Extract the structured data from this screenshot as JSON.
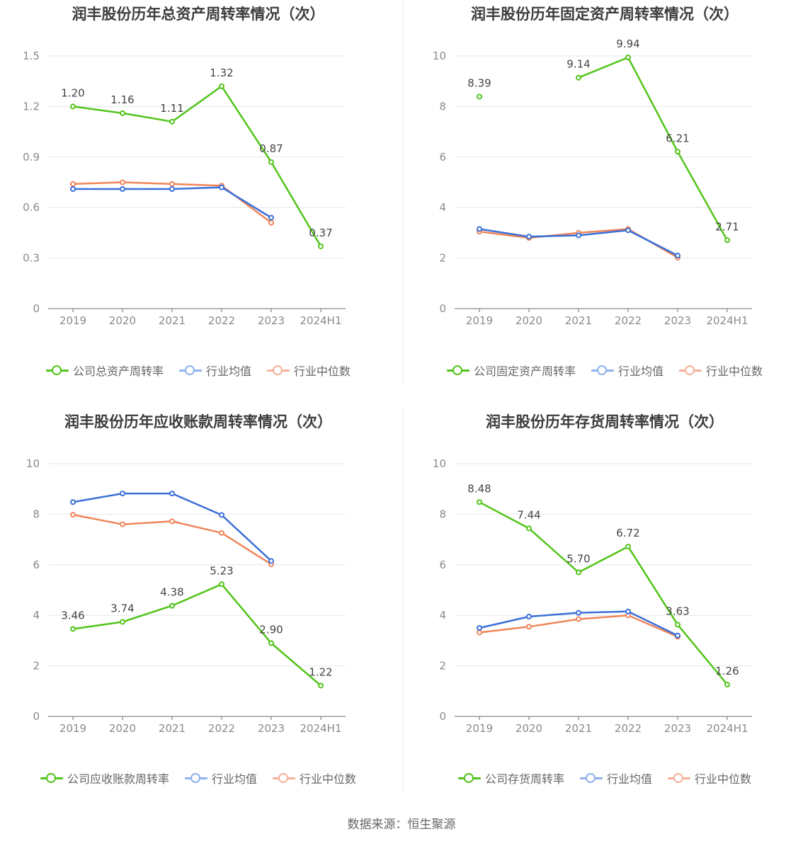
{
  "source": "数据来源：恒生聚源",
  "colors": {
    "company": "#52c41a",
    "avg": "#3a6fd8",
    "median": "#f0855a",
    "legend_avg": "#8fb1ee",
    "legend_median": "#f7b19a"
  },
  "chart_data": [
    {
      "type": "line",
      "title": "润丰股份历年总资产周转率情况（次）",
      "categories": [
        "2019",
        "2020",
        "2021",
        "2022",
        "2023",
        "2024H1"
      ],
      "ylim": [
        0,
        1.5
      ],
      "yticks": [
        "0",
        "0.3",
        "0.6",
        "0.9",
        "1.2",
        "1.5"
      ],
      "series": [
        {
          "name": "公司总资产周转率",
          "values": [
            1.2,
            1.16,
            1.11,
            1.32,
            0.87,
            0.37
          ],
          "labels": [
            "1.20",
            "1.16",
            "1.11",
            "1.32",
            "0.87",
            "0.37"
          ]
        },
        {
          "name": "行业均值",
          "values": [
            0.71,
            0.71,
            0.71,
            0.72,
            0.54,
            null
          ]
        },
        {
          "name": "行业中位数",
          "values": [
            0.74,
            0.75,
            0.74,
            0.73,
            0.51,
            null
          ]
        }
      ]
    },
    {
      "type": "line",
      "title": "润丰股份历年固定资产周转率情况（次）",
      "categories": [
        "2019",
        "2020",
        "2021",
        "2022",
        "2023",
        "2024H1"
      ],
      "ylim": [
        0,
        10
      ],
      "yticks": [
        "0",
        "2",
        "4",
        "6",
        "8",
        "10"
      ],
      "series": [
        {
          "name": "公司固定资产周转率",
          "values": [
            8.39,
            null,
            9.14,
            9.94,
            6.21,
            2.71
          ],
          "labels": [
            "8.39",
            "",
            "9.14",
            "9.94",
            "6.21",
            "2.71"
          ]
        },
        {
          "name": "行业均值",
          "values": [
            3.15,
            2.85,
            2.9,
            3.1,
            2.1,
            null
          ]
        },
        {
          "name": "行业中位数",
          "values": [
            3.05,
            2.8,
            3.0,
            3.15,
            2.02,
            null
          ]
        }
      ]
    },
    {
      "type": "line",
      "title": "润丰股份历年应收账款周转率情况（次）",
      "categories": [
        "2019",
        "2020",
        "2021",
        "2022",
        "2023",
        "2024H1"
      ],
      "ylim": [
        0,
        10
      ],
      "yticks": [
        "0",
        "2",
        "4",
        "6",
        "8",
        "10"
      ],
      "series": [
        {
          "name": "公司应收账款周转率",
          "values": [
            3.46,
            3.74,
            4.38,
            5.23,
            2.9,
            1.22
          ],
          "labels": [
            "3.46",
            "3.74",
            "4.38",
            "5.23",
            "2.90",
            "1.22"
          ]
        },
        {
          "name": "行业均值",
          "values": [
            8.48,
            8.82,
            8.82,
            7.97,
            6.15,
            null
          ]
        },
        {
          "name": "行业中位数",
          "values": [
            7.98,
            7.6,
            7.72,
            7.26,
            6.02,
            null
          ]
        }
      ]
    },
    {
      "type": "line",
      "title": "润丰股份历年存货周转率情况（次）",
      "categories": [
        "2019",
        "2020",
        "2021",
        "2022",
        "2023",
        "2024H1"
      ],
      "ylim": [
        0,
        10
      ],
      "yticks": [
        "0",
        "2",
        "4",
        "6",
        "8",
        "10"
      ],
      "series": [
        {
          "name": "公司存货周转率",
          "values": [
            8.48,
            7.44,
            5.7,
            6.72,
            3.63,
            1.26
          ],
          "labels": [
            "8.48",
            "7.44",
            "5.70",
            "6.72",
            "3.63",
            "1.26"
          ]
        },
        {
          "name": "行业均值",
          "values": [
            3.5,
            3.95,
            4.1,
            4.15,
            3.2,
            null
          ]
        },
        {
          "name": "行业中位数",
          "values": [
            3.32,
            3.55,
            3.85,
            4.0,
            3.15,
            null
          ]
        }
      ]
    }
  ]
}
